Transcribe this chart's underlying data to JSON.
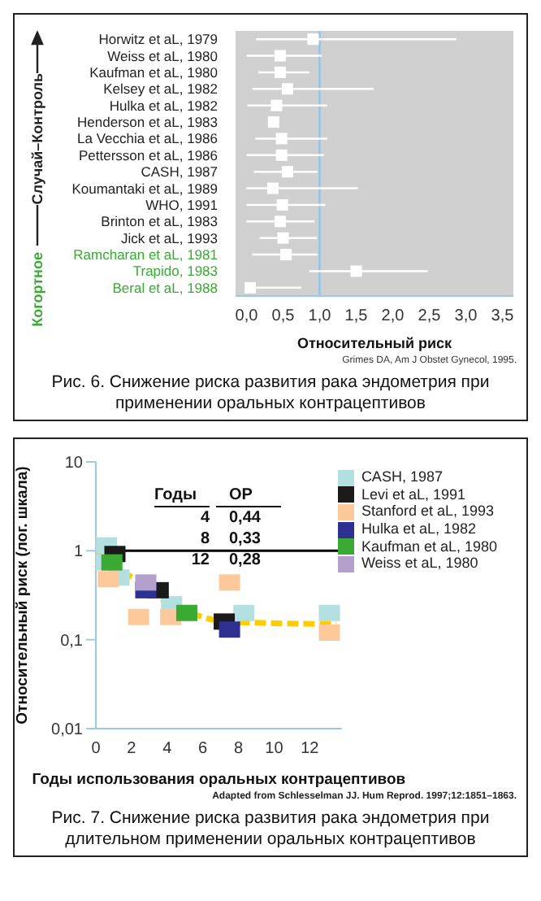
{
  "chart_data": [
    {
      "type": "scatter",
      "orientation": "horizontal",
      "xlabel": "Относительный риск",
      "categories": [
        "Horwitz et aL, 1979",
        "Weiss et aL, 1980",
        "Kaufman et aL, 1980",
        "Kelsey et aL, 1982",
        "Hulka et aL, 1982",
        "Henderson et aL, 1983",
        "La Vecchia et aL, 1986",
        "Pettersson et aL, 1986",
        "CASH, 1987",
        "Koumantaki et aL, 1989",
        "WHO, 1991",
        "Brinton et aL, 1983",
        "Jick et aL, 1993",
        "Ramcharan et aL, 1981",
        "Trapido, 1983",
        "Beral et aL, 1988"
      ],
      "series": [
        {
          "color": "#ffffff",
          "values": [
            0.91,
            0.46,
            0.46,
            0.56,
            0.41,
            0.37,
            0.48,
            0.48,
            0.56,
            0.36,
            0.49,
            0.46,
            0.5,
            0.54,
            1.5,
            0.05
          ],
          "errors": [
            [
              0.13,
              2.87
            ],
            [
              0.0,
              1.03
            ],
            [
              0.16,
              0.86
            ],
            [
              0.08,
              1.74
            ],
            [
              0.01,
              1.1
            ],
            null,
            [
              0.12,
              1.1
            ],
            [
              0.0,
              1.06
            ],
            [
              0.1,
              0.97
            ],
            [
              0.0,
              1.52
            ],
            [
              0.0,
              1.08
            ],
            [
              0.0,
              0.93
            ],
            [
              0.18,
              0.96
            ],
            [
              0.08,
              0.97
            ],
            [
              0.86,
              2.48
            ],
            [
              0.0,
              0.75
            ]
          ]
        }
      ],
      "xlim": [
        -0.15,
        3.65
      ],
      "xticks": [
        {
          "value": 0,
          "label": "0,0"
        },
        {
          "value": 0.5,
          "label": "0,5"
        },
        {
          "value": 1,
          "label": "1,0"
        },
        {
          "value": 1.5,
          "label": "1,5"
        },
        {
          "value": 2,
          "label": "2,0"
        },
        {
          "value": 2.5,
          "label": "2,5"
        },
        {
          "value": 3,
          "label": "3,0"
        },
        {
          "value": 3.5,
          "label": "3,5"
        }
      ],
      "ref_lines": [
        {
          "axis": "x",
          "value": 1,
          "color": "#8ec3ea"
        }
      ],
      "marker": "square",
      "annotations": [
        "Случай–Контроль",
        "Когортное",
        "Grimes DA, Am J Obstet Gynecol, 1995.",
        "Рис. 6. Снижение риска развития рака эндометрия при применении оральных контрацептивов"
      ]
    },
    {
      "type": "scatter",
      "xlabel": "Годы использования оральных контрацептивов",
      "ylabel": "Относительный риск (лог. шкала)",
      "series": [
        {
          "name": "CASH, 1987",
          "color": "#b3dfe0",
          "x": [
            0.6,
            0.37,
            1.3,
            4.25,
            8.3,
            13.1
          ],
          "values": [
            1.15,
            0.74,
            0.5,
            0.25,
            0.2,
            0.2
          ]
        },
        {
          "name": "Levi et aL, 1991",
          "color": "#1a1a1a",
          "x": [
            1.07,
            3.5,
            7.2
          ],
          "values": [
            0.92,
            0.36,
            0.16
          ]
        },
        {
          "name": "Stanford et aL, 1993",
          "color": "#fdc99b",
          "x": [
            0.7,
            2.4,
            4.2,
            7.5,
            13.1
          ],
          "values": [
            0.48,
            0.18,
            0.18,
            0.44,
            0.12
          ]
        },
        {
          "name": "Hulka et aL, 1982",
          "color": "#2e3192",
          "x": [
            2.8,
            7.5
          ],
          "values": [
            0.36,
            0.13
          ]
        },
        {
          "name": "Kaufman et aL, 1980",
          "color": "#3aaa35",
          "x": [
            0.9,
            5.1
          ],
          "values": [
            0.74,
            0.2
          ]
        },
        {
          "name": "Weiss et aL, 1980",
          "color": "#b49fcc",
          "x": [
            2.8
          ],
          "values": [
            0.44
          ]
        },
        {
          "type": "line",
          "color": "#ffcc00",
          "line_style": "dashed",
          "marker": "none",
          "x": [
            0,
            1.2,
            2.8,
            4.2,
            5.6,
            7.2,
            9,
            13.5
          ],
          "values": [
            0.96,
            0.63,
            0.41,
            0.24,
            0.19,
            0.16,
            0.155,
            0.15
          ]
        }
      ],
      "xlim": [
        0,
        13.8
      ],
      "xticks": [
        0,
        2,
        4,
        6,
        8,
        10,
        12
      ],
      "log": "y",
      "ylim": [
        0.01,
        10
      ],
      "yticks": [
        {
          "value": 0.01,
          "label": "0,01"
        },
        {
          "value": 0.1,
          "label": "0,1"
        },
        1,
        10
      ],
      "ref_lines": [
        {
          "axis": "y",
          "value": 1,
          "color": "#000000"
        }
      ],
      "marker": "square",
      "legend": "top right",
      "annotations": [
        "Годы",
        "ОР",
        "4",
        "0,44",
        "8",
        "0,33",
        "12",
        "0,28",
        "Adapted from Schlesselman JJ. Hum Reprod. 1997;12:1851–1863.",
        "Рис. 7. Снижение риска развития рака эндометрия при длительном применении оральных контрацептивов"
      ]
    }
  ]
}
